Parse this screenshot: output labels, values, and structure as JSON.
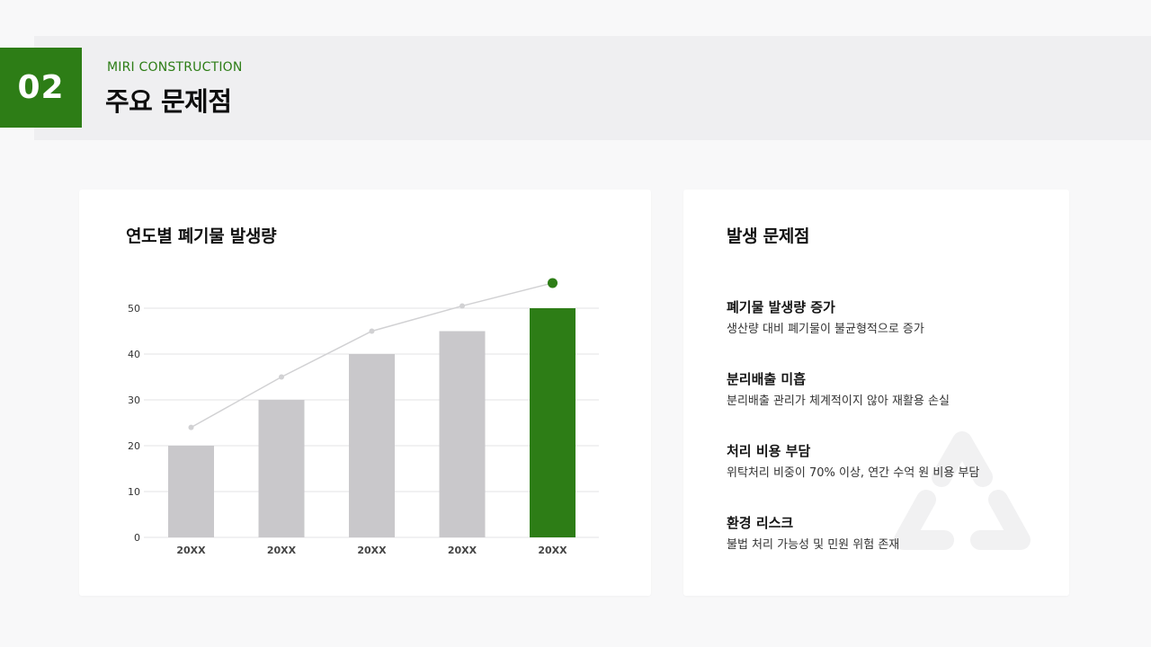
{
  "header": {
    "number": "02",
    "eyebrow": "MIRI CONSTRUCTION",
    "title": "주요 문제점",
    "accent_color": "#2d7d16"
  },
  "left_card": {
    "title": "연도별 폐기물 발생량"
  },
  "chart_data": {
    "type": "bar",
    "categories": [
      "20XX",
      "20XX",
      "20XX",
      "20XX",
      "20XX"
    ],
    "values": [
      20,
      30,
      40,
      45,
      50
    ],
    "trend_line": [
      24,
      35,
      45,
      50.5,
      55.5
    ],
    "ylim": [
      0,
      50
    ],
    "yticks": [
      0,
      10,
      20,
      30,
      40,
      50
    ],
    "grid": true,
    "bar_color": "#c9c8cb",
    "highlight_color": "#2d7d16",
    "highlight_index": 4,
    "line_color": "#d1d1d3",
    "title": "연도별 폐기물 발생량",
    "xlabel": "",
    "ylabel": ""
  },
  "right_card": {
    "title": "발생 문제점",
    "issues": [
      {
        "title": "폐기물 발생량 증가",
        "desc": "생산량 대비 폐기물이 불균형적으로 증가"
      },
      {
        "title": "분리배출 미흡",
        "desc": "분리배출 관리가 체계적이지 않아 재활용 손실"
      },
      {
        "title": "처리 비용 부담",
        "desc": "위탁처리 비중이 70% 이상, 연간 수억 원 비용 부담"
      },
      {
        "title": "환경 리스크",
        "desc": "불법 처리 가능성 및 민원 위험 존재"
      }
    ],
    "watermark_icon": "recycle-icon"
  }
}
